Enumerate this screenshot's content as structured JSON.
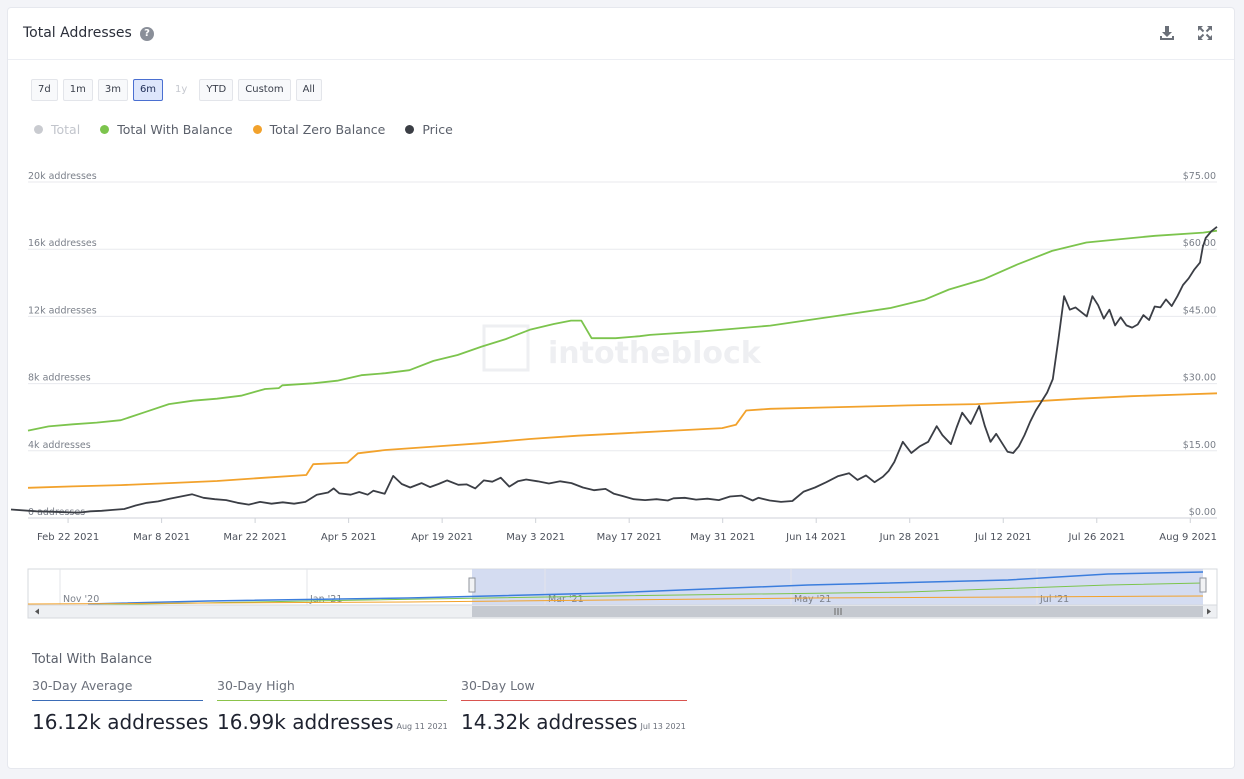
{
  "header": {
    "title": "Total Addresses"
  },
  "range_buttons": [
    {
      "label": "7d",
      "state": "normal"
    },
    {
      "label": "1m",
      "state": "normal"
    },
    {
      "label": "3m",
      "state": "normal"
    },
    {
      "label": "6m",
      "state": "active"
    },
    {
      "label": "1y",
      "state": "disabled"
    },
    {
      "label": "YTD",
      "state": "normal"
    },
    {
      "label": "Custom",
      "state": "normal"
    },
    {
      "label": "All",
      "state": "normal"
    }
  ],
  "legend": [
    {
      "name": "Total",
      "color": "#c9cbd0",
      "visible": false
    },
    {
      "name": "Total With Balance",
      "color": "#7cc44d",
      "visible": true
    },
    {
      "name": "Total Zero Balance",
      "color": "#f2a22c",
      "visible": true
    },
    {
      "name": "Price",
      "color": "#3b3e45",
      "visible": true
    }
  ],
  "watermark": "intotheblock",
  "chart_data": {
    "type": "line",
    "x_tick_labels": [
      "Feb 22 2021",
      "Mar 8 2021",
      "Mar 22 2021",
      "Apr 5 2021",
      "Apr 19 2021",
      "May 3 2021",
      "May 17 2021",
      "May 31 2021",
      "Jun 14 2021",
      "Jun 28 2021",
      "Jul 12 2021",
      "Jul 26 2021",
      "Aug 9 2021"
    ],
    "y_left_ticks": [
      "0 addresses",
      "4k addresses",
      "8k addresses",
      "12k addresses",
      "16k addresses",
      "20k addresses"
    ],
    "y_right_ticks": [
      "$0.00",
      "$15.00",
      "$30.00",
      "$45.00",
      "$60.00",
      "$75.00"
    ],
    "y_left_range": [
      0,
      20000
    ],
    "y_right_range": [
      0,
      75
    ],
    "x_range_days": [
      -6,
      172
    ],
    "grid": "horizontal",
    "series": [
      {
        "name": "Total With Balance",
        "axis": "left",
        "color": "#7cc44d",
        "points": [
          [
            -6,
            5200
          ],
          [
            0,
            5450
          ],
          [
            7,
            5580
          ],
          [
            14,
            5680
          ],
          [
            21,
            5820
          ],
          [
            28,
            6300
          ],
          [
            35,
            6780
          ],
          [
            42,
            6980
          ],
          [
            49,
            7100
          ],
          [
            56,
            7280
          ],
          [
            63,
            7680
          ],
          [
            67,
            7730
          ],
          [
            68,
            7900
          ],
          [
            77,
            8020
          ],
          [
            84,
            8170
          ],
          [
            91,
            8500
          ],
          [
            98,
            8620
          ],
          [
            105,
            8800
          ],
          [
            112,
            9350
          ],
          [
            119,
            9700
          ],
          [
            126,
            10200
          ],
          [
            133,
            10650
          ],
          [
            140,
            11200
          ],
          [
            147,
            11550
          ],
          [
            152,
            11750
          ],
          [
            155,
            11750
          ],
          [
            158,
            10700
          ],
          [
            165,
            10700
          ],
          [
            172,
            10820
          ],
          [
            175,
            10900
          ],
          [
            190,
            11100
          ],
          [
            210,
            11450
          ],
          [
            220,
            11750
          ],
          [
            230,
            12050
          ],
          [
            245,
            12500
          ],
          [
            255,
            13000
          ],
          [
            262,
            13600
          ],
          [
            272,
            14200
          ],
          [
            282,
            15100
          ],
          [
            292,
            15900
          ],
          [
            302,
            16400
          ],
          [
            312,
            16600
          ],
          [
            322,
            16800
          ],
          [
            336,
            16990
          ],
          [
            340,
            17100
          ]
        ]
      },
      {
        "name": "Total Zero Balance",
        "axis": "left",
        "color": "#f2a22c",
        "points": [
          [
            -6,
            1800
          ],
          [
            7,
            1880
          ],
          [
            21,
            1960
          ],
          [
            35,
            2080
          ],
          [
            49,
            2200
          ],
          [
            63,
            2400
          ],
          [
            75,
            2560
          ],
          [
            77,
            3200
          ],
          [
            87,
            3300
          ],
          [
            90,
            3850
          ],
          [
            98,
            4050
          ],
          [
            112,
            4250
          ],
          [
            126,
            4450
          ],
          [
            140,
            4700
          ],
          [
            154,
            4900
          ],
          [
            168,
            5050
          ],
          [
            182,
            5200
          ],
          [
            196,
            5350
          ],
          [
            200,
            5550
          ],
          [
            203,
            6400
          ],
          [
            210,
            6500
          ],
          [
            230,
            6600
          ],
          [
            250,
            6700
          ],
          [
            270,
            6780
          ],
          [
            285,
            6920
          ],
          [
            300,
            7100
          ],
          [
            315,
            7250
          ],
          [
            330,
            7350
          ],
          [
            340,
            7420
          ]
        ]
      },
      {
        "name": "Price",
        "axis": "right",
        "color": "#3b3e45",
        "points": [
          [
            -6,
            1.9
          ],
          [
            3,
            1.5
          ],
          [
            8,
            1.4
          ],
          [
            13,
            1.3
          ],
          [
            18,
            1.2
          ],
          [
            22,
            1.5
          ],
          [
            26,
            1.6
          ],
          [
            30,
            1.8
          ],
          [
            34,
            2.0
          ],
          [
            38,
            2.8
          ],
          [
            42,
            3.4
          ],
          [
            46,
            3.7
          ],
          [
            50,
            4.3
          ],
          [
            54,
            4.8
          ],
          [
            58,
            5.3
          ],
          [
            62,
            4.5
          ],
          [
            66,
            4.2
          ],
          [
            70,
            4.0
          ],
          [
            74,
            3.4
          ],
          [
            78,
            3.0
          ],
          [
            82,
            3.6
          ],
          [
            86,
            3.2
          ],
          [
            90,
            3.5
          ],
          [
            94,
            3.2
          ],
          [
            98,
            3.6
          ],
          [
            102,
            5.2
          ],
          [
            106,
            5.7
          ],
          [
            108,
            6.6
          ],
          [
            110,
            5.5
          ],
          [
            114,
            5.2
          ],
          [
            117,
            5.8
          ],
          [
            120,
            5.2
          ],
          [
            122,
            6.1
          ],
          [
            126,
            5.4
          ],
          [
            129,
            9.4
          ],
          [
            132,
            7.6
          ],
          [
            135,
            6.8
          ],
          [
            139,
            7.8
          ],
          [
            142,
            6.9
          ],
          [
            145,
            7.6
          ],
          [
            148,
            8.4
          ],
          [
            152,
            7.4
          ],
          [
            155,
            7.5
          ],
          [
            158,
            6.6
          ],
          [
            161,
            8.4
          ],
          [
            164,
            8.1
          ],
          [
            167,
            9.0
          ],
          [
            170,
            7.0
          ],
          [
            173,
            8.2
          ],
          [
            176,
            8.6
          ],
          [
            180,
            8.2
          ],
          [
            184,
            7.7
          ],
          [
            188,
            8.2
          ],
          [
            192,
            7.8
          ],
          [
            196,
            6.8
          ],
          [
            200,
            6.2
          ],
          [
            204,
            6.5
          ],
          [
            207,
            5.4
          ],
          [
            210,
            4.9
          ],
          [
            214,
            4.2
          ],
          [
            218,
            4.0
          ],
          [
            222,
            4.2
          ],
          [
            226,
            3.9
          ],
          [
            228,
            4.4
          ],
          [
            232,
            4.5
          ],
          [
            236,
            4.1
          ],
          [
            240,
            4.3
          ],
          [
            244,
            4.0
          ],
          [
            248,
            4.8
          ],
          [
            252,
            5.0
          ],
          [
            256,
            3.9
          ],
          [
            258,
            4.5
          ],
          [
            262,
            3.9
          ],
          [
            266,
            3.6
          ],
          [
            270,
            3.8
          ],
          [
            274,
            5.9
          ],
          [
            278,
            6.8
          ],
          [
            282,
            8.0
          ],
          [
            286,
            9.3
          ],
          [
            290,
            10.0
          ],
          [
            293,
            8.5
          ],
          [
            296,
            9.5
          ],
          [
            299,
            8.0
          ],
          [
            302,
            9.2
          ],
          [
            304,
            10.5
          ],
          [
            306,
            12.5
          ],
          [
            309,
            17.0
          ],
          [
            312,
            14.5
          ],
          [
            315,
            16.0
          ],
          [
            318,
            17.0
          ],
          [
            321,
            20.5
          ],
          [
            323,
            18.5
          ],
          [
            326,
            16.5
          ],
          [
            328,
            20.2
          ],
          [
            330,
            23.5
          ],
          [
            333,
            21.0
          ],
          [
            336,
            25.0
          ],
          [
            338,
            20.5
          ],
          [
            340,
            17.0
          ],
          [
            342,
            18.8
          ],
          [
            346,
            14.8
          ],
          [
            348,
            14.5
          ],
          [
            350,
            16.0
          ],
          [
            352,
            18.5
          ],
          [
            354,
            21.5
          ],
          [
            356,
            24.0
          ],
          [
            358,
            26.0
          ],
          [
            360,
            28.0
          ],
          [
            362,
            31.0
          ],
          [
            364,
            40.0
          ],
          [
            366,
            49.5
          ],
          [
            368,
            46.5
          ],
          [
            370,
            47.0
          ],
          [
            372,
            46.0
          ],
          [
            374,
            45.0
          ],
          [
            376,
            49.5
          ],
          [
            378,
            47.5
          ],
          [
            380,
            44.5
          ],
          [
            382,
            46.5
          ],
          [
            384,
            43.0
          ],
          [
            386,
            44.8
          ],
          [
            388,
            43.0
          ],
          [
            390,
            42.5
          ],
          [
            392,
            43.2
          ],
          [
            394,
            45.3
          ],
          [
            396,
            44.2
          ],
          [
            398,
            47.2
          ],
          [
            400,
            47.0
          ],
          [
            402,
            48.8
          ],
          [
            404,
            47.3
          ],
          [
            406,
            49.5
          ],
          [
            408,
            52.0
          ],
          [
            410,
            53.5
          ],
          [
            412,
            55.5
          ],
          [
            414,
            57.0
          ],
          [
            415,
            60.5
          ],
          [
            416,
            62.5
          ],
          [
            418,
            64.0
          ],
          [
            420,
            65.0
          ]
        ]
      }
    ]
  },
  "navigator": {
    "labels": [
      "Nov '20",
      "Jan '21",
      "Mar '21",
      "May '21",
      "Jul '21"
    ]
  },
  "stats": {
    "title": "Total With Balance",
    "items": [
      {
        "label": "30-Day Average",
        "value": "16.12k addresses",
        "date": "",
        "color": "#3b6cb7"
      },
      {
        "label": "30-Day High",
        "value": "16.99k addresses",
        "date": "Aug 11 2021",
        "color": "#8bc34a"
      },
      {
        "label": "30-Day Low",
        "value": "14.32k addresses",
        "date": "Jul 13 2021",
        "color": "#d9534f"
      }
    ]
  }
}
